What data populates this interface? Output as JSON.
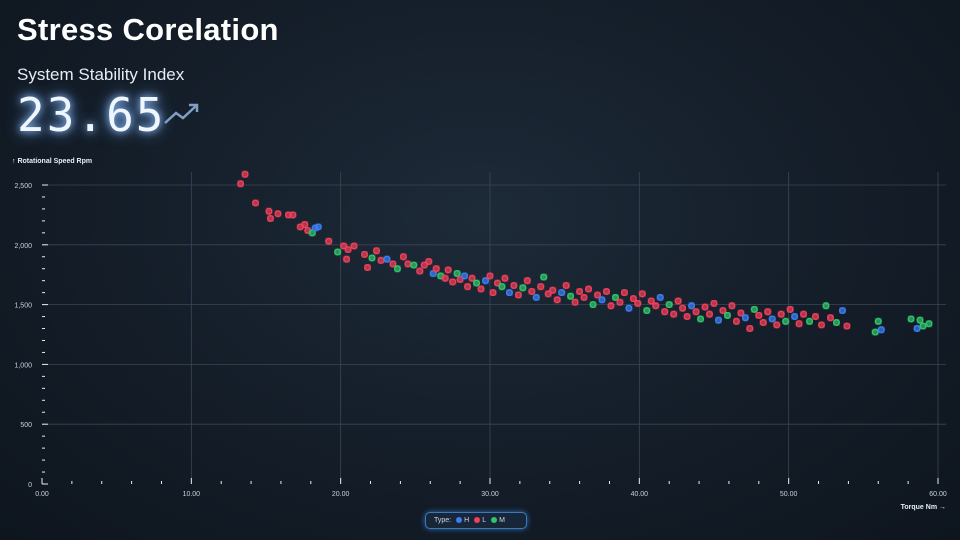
{
  "title": "Stress Corelation",
  "kpi": {
    "label": "System Stability Index",
    "value": "23.65",
    "trend_icon": "trend-up-icon"
  },
  "chart_data": {
    "type": "scatter",
    "title": "Stress Corelation",
    "xlabel": "Torque Nm →",
    "ylabel": "↑ Rotational Speed Rpm",
    "xlim": [
      0,
      60
    ],
    "ylim": [
      0,
      2600
    ],
    "xticks": [
      "0.00",
      "10.00",
      "20.00",
      "30.00",
      "40.00",
      "50.00",
      "60.00"
    ],
    "yticks": [
      "0",
      "500",
      "1,000",
      "1,500",
      "2,000",
      "2,500"
    ],
    "grid": true,
    "legend": {
      "title": "Type:",
      "placement": "bottom-center",
      "entries": [
        {
          "name": "H",
          "color": "#3b7ff0"
        },
        {
          "name": "L",
          "color": "#f0405a"
        },
        {
          "name": "M",
          "color": "#33c46a"
        }
      ]
    },
    "points": [
      [
        13.3,
        2510,
        "L"
      ],
      [
        13.6,
        2590,
        "L"
      ],
      [
        14.3,
        2350,
        "L"
      ],
      [
        15.2,
        2280,
        "L"
      ],
      [
        15.3,
        2220,
        "L"
      ],
      [
        15.8,
        2260,
        "L"
      ],
      [
        16.5,
        2250,
        "L"
      ],
      [
        16.8,
        2250,
        "L"
      ],
      [
        17.3,
        2150,
        "L"
      ],
      [
        17.6,
        2170,
        "L"
      ],
      [
        17.8,
        2120,
        "L"
      ],
      [
        18.1,
        2100,
        "M"
      ],
      [
        18.3,
        2140,
        "H"
      ],
      [
        18.5,
        2150,
        "H"
      ],
      [
        19.2,
        2030,
        "L"
      ],
      [
        19.8,
        1940,
        "M"
      ],
      [
        20.2,
        1990,
        "L"
      ],
      [
        20.4,
        1880,
        "L"
      ],
      [
        20.5,
        1960,
        "L"
      ],
      [
        20.9,
        1990,
        "L"
      ],
      [
        21.6,
        1920,
        "L"
      ],
      [
        21.8,
        1810,
        "L"
      ],
      [
        22.1,
        1890,
        "M"
      ],
      [
        22.4,
        1950,
        "L"
      ],
      [
        22.7,
        1870,
        "L"
      ],
      [
        23.1,
        1880,
        "H"
      ],
      [
        23.5,
        1840,
        "L"
      ],
      [
        23.8,
        1800,
        "M"
      ],
      [
        24.2,
        1900,
        "L"
      ],
      [
        24.5,
        1840,
        "L"
      ],
      [
        24.9,
        1830,
        "M"
      ],
      [
        25.3,
        1780,
        "L"
      ],
      [
        25.6,
        1830,
        "L"
      ],
      [
        25.9,
        1860,
        "L"
      ],
      [
        26.2,
        1760,
        "H"
      ],
      [
        26.4,
        1800,
        "L"
      ],
      [
        26.7,
        1740,
        "M"
      ],
      [
        27.0,
        1720,
        "L"
      ],
      [
        27.2,
        1790,
        "L"
      ],
      [
        27.5,
        1690,
        "L"
      ],
      [
        27.8,
        1760,
        "M"
      ],
      [
        28.0,
        1710,
        "L"
      ],
      [
        28.3,
        1740,
        "H"
      ],
      [
        28.5,
        1650,
        "L"
      ],
      [
        28.8,
        1720,
        "L"
      ],
      [
        29.1,
        1680,
        "M"
      ],
      [
        29.4,
        1630,
        "L"
      ],
      [
        29.7,
        1700,
        "H"
      ],
      [
        30.0,
        1740,
        "L"
      ],
      [
        30.2,
        1600,
        "L"
      ],
      [
        30.5,
        1680,
        "L"
      ],
      [
        30.8,
        1650,
        "M"
      ],
      [
        31.0,
        1720,
        "L"
      ],
      [
        31.3,
        1600,
        "H"
      ],
      [
        31.6,
        1660,
        "L"
      ],
      [
        31.9,
        1580,
        "L"
      ],
      [
        32.2,
        1640,
        "M"
      ],
      [
        32.5,
        1700,
        "L"
      ],
      [
        32.8,
        1610,
        "L"
      ],
      [
        33.1,
        1560,
        "H"
      ],
      [
        33.4,
        1650,
        "L"
      ],
      [
        33.6,
        1730,
        "M"
      ],
      [
        33.9,
        1590,
        "L"
      ],
      [
        34.2,
        1620,
        "L"
      ],
      [
        34.5,
        1540,
        "L"
      ],
      [
        34.8,
        1600,
        "H"
      ],
      [
        35.1,
        1660,
        "L"
      ],
      [
        35.4,
        1570,
        "M"
      ],
      [
        35.7,
        1520,
        "L"
      ],
      [
        36.0,
        1610,
        "L"
      ],
      [
        36.3,
        1560,
        "L"
      ],
      [
        36.6,
        1630,
        "L"
      ],
      [
        36.9,
        1500,
        "M"
      ],
      [
        37.2,
        1580,
        "L"
      ],
      [
        37.5,
        1540,
        "H"
      ],
      [
        37.8,
        1610,
        "L"
      ],
      [
        38.1,
        1490,
        "L"
      ],
      [
        38.4,
        1560,
        "M"
      ],
      [
        38.7,
        1520,
        "L"
      ],
      [
        39.0,
        1600,
        "L"
      ],
      [
        39.3,
        1470,
        "H"
      ],
      [
        39.6,
        1550,
        "L"
      ],
      [
        39.9,
        1510,
        "L"
      ],
      [
        40.2,
        1590,
        "L"
      ],
      [
        40.5,
        1450,
        "M"
      ],
      [
        40.8,
        1530,
        "L"
      ],
      [
        41.1,
        1490,
        "L"
      ],
      [
        41.4,
        1560,
        "H"
      ],
      [
        41.7,
        1440,
        "L"
      ],
      [
        42.0,
        1500,
        "M"
      ],
      [
        42.3,
        1420,
        "L"
      ],
      [
        42.6,
        1530,
        "L"
      ],
      [
        42.9,
        1470,
        "L"
      ],
      [
        43.2,
        1400,
        "L"
      ],
      [
        43.5,
        1490,
        "H"
      ],
      [
        43.8,
        1440,
        "L"
      ],
      [
        44.1,
        1380,
        "M"
      ],
      [
        44.4,
        1480,
        "L"
      ],
      [
        44.7,
        1420,
        "L"
      ],
      [
        45.0,
        1510,
        "L"
      ],
      [
        45.3,
        1370,
        "H"
      ],
      [
        45.6,
        1450,
        "L"
      ],
      [
        45.9,
        1410,
        "M"
      ],
      [
        46.2,
        1490,
        "L"
      ],
      [
        46.5,
        1360,
        "L"
      ],
      [
        46.8,
        1430,
        "L"
      ],
      [
        47.1,
        1390,
        "H"
      ],
      [
        47.4,
        1300,
        "L"
      ],
      [
        47.7,
        1460,
        "M"
      ],
      [
        48.0,
        1410,
        "L"
      ],
      [
        48.3,
        1350,
        "L"
      ],
      [
        48.6,
        1440,
        "L"
      ],
      [
        48.9,
        1380,
        "H"
      ],
      [
        49.2,
        1330,
        "L"
      ],
      [
        49.5,
        1420,
        "L"
      ],
      [
        49.8,
        1360,
        "M"
      ],
      [
        50.1,
        1460,
        "L"
      ],
      [
        50.4,
        1400,
        "H"
      ],
      [
        50.7,
        1340,
        "L"
      ],
      [
        51.0,
        1420,
        "L"
      ],
      [
        51.4,
        1360,
        "M"
      ],
      [
        51.8,
        1400,
        "L"
      ],
      [
        52.2,
        1330,
        "L"
      ],
      [
        52.5,
        1490,
        "M"
      ],
      [
        52.8,
        1390,
        "L"
      ],
      [
        53.2,
        1350,
        "M"
      ],
      [
        53.6,
        1450,
        "H"
      ],
      [
        53.9,
        1320,
        "L"
      ],
      [
        55.8,
        1270,
        "M"
      ],
      [
        56.0,
        1360,
        "M"
      ],
      [
        56.2,
        1290,
        "H"
      ],
      [
        58.2,
        1380,
        "M"
      ],
      [
        58.6,
        1300,
        "H"
      ],
      [
        58.8,
        1370,
        "M"
      ],
      [
        59.0,
        1320,
        "M"
      ],
      [
        59.4,
        1340,
        "M"
      ]
    ]
  }
}
